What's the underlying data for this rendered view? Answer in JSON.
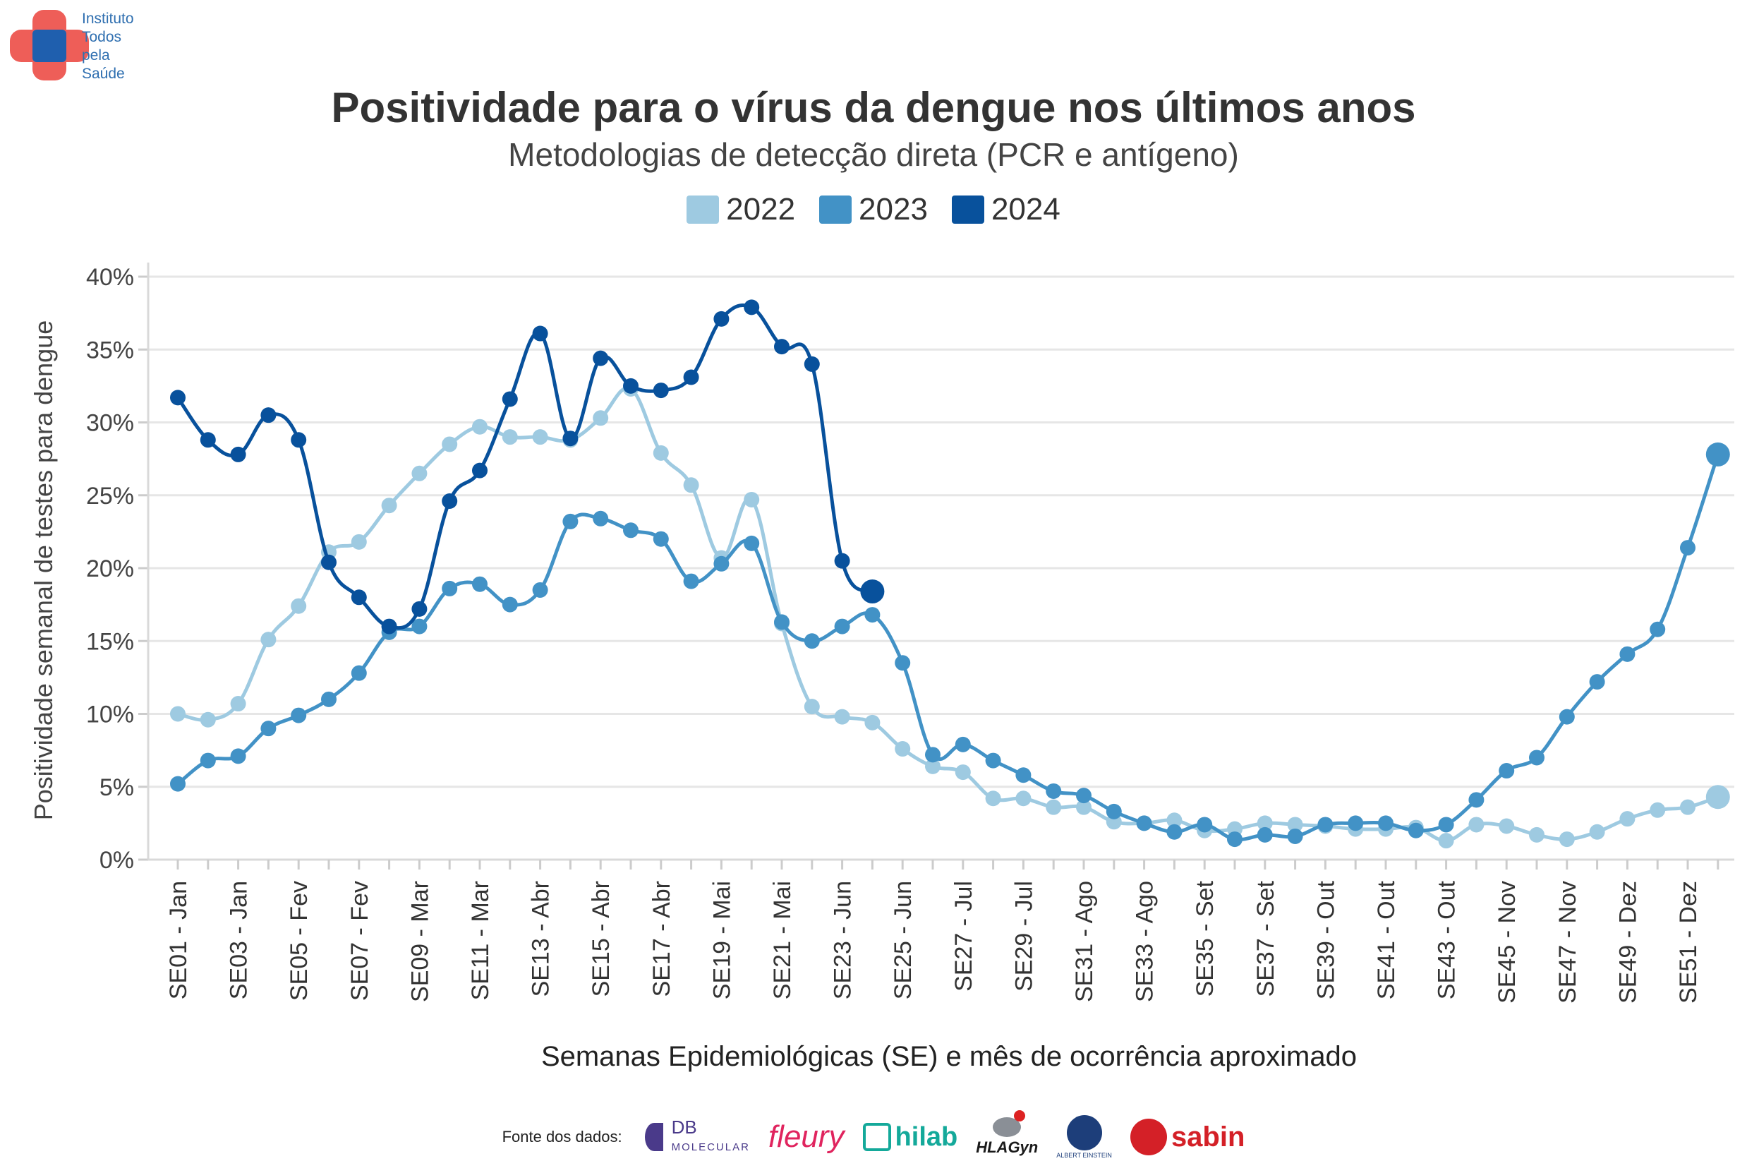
{
  "organization": {
    "name_lines": [
      "Instituto",
      "Todos",
      "pela",
      "Saúde"
    ],
    "colors": {
      "cross_outer": "#e8504a",
      "cross_inner": "#1f5fae"
    }
  },
  "sources": {
    "label": "Fonte dos dados:",
    "logos": [
      {
        "name": "db-molecular-logo",
        "text_top": "DB",
        "text_bottom": "MOLECULAR"
      },
      {
        "name": "fleury-logo",
        "text": "fleury"
      },
      {
        "name": "hilab-logo",
        "text": "hilab"
      },
      {
        "name": "hlagyn-logo",
        "text": "HLAGyn"
      },
      {
        "name": "einstein-logo",
        "text": "ALBERT EINSTEIN"
      },
      {
        "name": "sabin-logo",
        "text": "sabin"
      }
    ]
  },
  "chart_data": {
    "type": "line",
    "title": "Positividade para o vírus da dengue nos últimos anos",
    "subtitle": "Metodologias de detecção direta (PCR e antígeno)",
    "xlabel": "Semanas Epidemiológicas (SE) e mês de ocorrência aproximado",
    "ylabel": "Positividade semanal de testes para dengue",
    "ylim": [
      0,
      40
    ],
    "yticks": [
      "0%",
      "5%",
      "10%",
      "15%",
      "20%",
      "25%",
      "30%",
      "35%",
      "40%"
    ],
    "grid": "horizontal",
    "legend_position": "top-center",
    "x_tick_labels": [
      "SE01 - Jan",
      "SE03 - Jan",
      "SE05 - Fev",
      "SE07 - Fev",
      "SE09 - Mar",
      "SE11 - Mar",
      "SE13 - Abr",
      "SE15 - Abr",
      "SE17 - Abr",
      "SE19 - Mai",
      "SE21 - Mai",
      "SE23 - Jun",
      "SE25 - Jun",
      "SE27 - Jul",
      "SE29 - Jul",
      "SE31 - Ago",
      "SE33 - Ago",
      "SE35 - Set",
      "SE37 - Set",
      "SE39 - Out",
      "SE41 - Out",
      "SE43 - Out",
      "SE45 - Nov",
      "SE47 - Nov",
      "SE49 - Dez",
      "SE51 - Dez"
    ],
    "x_weeks": [
      1,
      2,
      3,
      4,
      5,
      6,
      7,
      8,
      9,
      10,
      11,
      12,
      13,
      14,
      15,
      16,
      17,
      18,
      19,
      20,
      21,
      22,
      23,
      24,
      25,
      26,
      27,
      28,
      29,
      30,
      31,
      32,
      33,
      34,
      35,
      36,
      37,
      38,
      39,
      40,
      41,
      42,
      43,
      44,
      45,
      46,
      47,
      48,
      49,
      50,
      51,
      52
    ],
    "series": [
      {
        "name": "2022",
        "color": "#9ecae1",
        "values": [
          10.0,
          9.6,
          10.7,
          15.1,
          17.4,
          21.1,
          21.8,
          24.3,
          26.5,
          28.5,
          29.7,
          29.0,
          29.0,
          28.8,
          30.3,
          32.3,
          27.9,
          25.7,
          20.7,
          24.7,
          16.2,
          10.5,
          9.8,
          9.4,
          7.6,
          6.4,
          6.0,
          4.2,
          4.2,
          3.6,
          3.6,
          2.6,
          2.5,
          2.7,
          2.0,
          2.1,
          2.5,
          2.4,
          2.3,
          2.1,
          2.1,
          2.2,
          1.3,
          2.4,
          2.3,
          1.7,
          1.4,
          1.9,
          2.8,
          3.4,
          3.6,
          4.3
        ]
      },
      {
        "name": "2023",
        "color": "#4292c6",
        "values": [
          5.2,
          6.8,
          7.1,
          9.0,
          9.9,
          11.0,
          12.8,
          15.6,
          16.0,
          18.6,
          18.9,
          17.5,
          18.5,
          23.2,
          23.4,
          22.6,
          22.0,
          19.1,
          20.3,
          21.7,
          16.3,
          15.0,
          16.0,
          16.8,
          13.5,
          7.2,
          7.9,
          6.8,
          5.8,
          4.7,
          4.4,
          3.3,
          2.5,
          1.9,
          2.4,
          1.4,
          1.7,
          1.6,
          2.4,
          2.5,
          2.5,
          2.0,
          2.4,
          4.1,
          6.1,
          7.0,
          9.8,
          12.2,
          14.1,
          15.8,
          21.4,
          27.8
        ]
      },
      {
        "name": "2024",
        "color": "#08519c",
        "values": [
          31.7,
          28.8,
          27.8,
          30.5,
          28.8,
          20.4,
          18.0,
          16.0,
          17.2,
          24.6,
          26.7,
          31.6,
          36.1,
          28.9,
          34.4,
          32.5,
          32.2,
          33.1,
          37.1,
          37.9,
          35.2,
          34.0,
          20.5,
          18.4
        ]
      }
    ]
  }
}
